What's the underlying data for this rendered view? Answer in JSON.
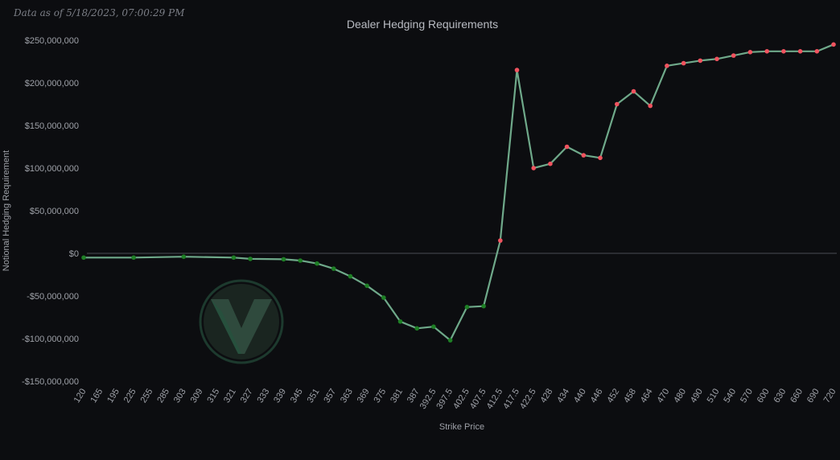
{
  "header": {
    "timestamp": "Data as of 5/18/2023, 07:00:29 PM",
    "title": "Dealer Hedging Requirements"
  },
  "logo": {
    "name": "brand-logo",
    "color": "#2c4a3f"
  },
  "chart_data": {
    "type": "line",
    "title": "Dealer Hedging Requirements",
    "xlabel": "Strike Price",
    "ylabel": "Notional Hedging Requirement",
    "ylim": [
      -150000000,
      250000000
    ],
    "grid": false,
    "zero_line": true,
    "colors": {
      "line": "#6fa98a",
      "negative_marker": "#1e7f25",
      "positive_marker": "#f0535f",
      "background": "#0c0d10",
      "text": "#9ea1a8"
    },
    "y_ticks": [
      {
        "value": 250000000,
        "label": "$250,000,000"
      },
      {
        "value": 200000000,
        "label": "$200,000,000"
      },
      {
        "value": 150000000,
        "label": "$150,000,000"
      },
      {
        "value": 100000000,
        "label": "$100,000,000"
      },
      {
        "value": 50000000,
        "label": "$50,000,000"
      },
      {
        "value": 0,
        "label": "$0"
      },
      {
        "value": -50000000,
        "label": "-$50,000,000"
      },
      {
        "value": -100000000,
        "label": "-$100,000,000"
      },
      {
        "value": -150000000,
        "label": "-$150,000,000"
      }
    ],
    "x_tick_labels": [
      "120",
      "165",
      "195",
      "225",
      "255",
      "285",
      "303",
      "309",
      "315",
      "321",
      "327",
      "333",
      "339",
      "345",
      "351",
      "357",
      "363",
      "369",
      "375",
      "381",
      "387",
      "392.5",
      "397.5",
      "402.5",
      "407.5",
      "412.5",
      "417.5",
      "422.5",
      "428",
      "434",
      "440",
      "446",
      "452",
      "458",
      "464",
      "470",
      "480",
      "490",
      "510",
      "540",
      "570",
      "600",
      "630",
      "660",
      "690",
      "720"
    ],
    "anchors": [
      {
        "x": "120",
        "y": -5000000
      },
      {
        "x": "225",
        "y": -5000000
      },
      {
        "x": "303",
        "y": -4000000
      },
      {
        "x": "321",
        "y": -5000000
      },
      {
        "x": "327",
        "y": -6500000
      },
      {
        "x": "339",
        "y": -7000000
      },
      {
        "x": "345",
        "y": -8500000
      },
      {
        "x": "351",
        "y": -12000000
      },
      {
        "x": "357",
        "y": -18000000
      },
      {
        "x": "363",
        "y": -27000000
      },
      {
        "x": "369",
        "y": -38000000
      },
      {
        "x": "375",
        "y": -52000000
      },
      {
        "x": "381",
        "y": -80000000
      },
      {
        "x": "387",
        "y": -88000000
      },
      {
        "x": "392.5",
        "y": -86000000
      },
      {
        "x": "397.5",
        "y": -102000000
      },
      {
        "x": "402.5",
        "y": -63000000
      },
      {
        "x": "407.5",
        "y": -62000000
      },
      {
        "x": "412.5",
        "y": 15000000
      },
      {
        "x": "417.5",
        "y": 215000000
      },
      {
        "x": "422.5",
        "y": 100000000
      },
      {
        "x": "428",
        "y": 105000000
      },
      {
        "x": "434",
        "y": 125000000
      },
      {
        "x": "440",
        "y": 115000000
      },
      {
        "x": "446",
        "y": 112000000
      },
      {
        "x": "452",
        "y": 175000000
      },
      {
        "x": "458",
        "y": 190000000
      },
      {
        "x": "464",
        "y": 173000000
      },
      {
        "x": "470",
        "y": 220000000
      },
      {
        "x": "480",
        "y": 223000000
      },
      {
        "x": "490",
        "y": 226000000
      },
      {
        "x": "510",
        "y": 228000000
      },
      {
        "x": "540",
        "y": 232000000
      },
      {
        "x": "570",
        "y": 236000000
      },
      {
        "x": "600",
        "y": 237000000
      },
      {
        "x": "630",
        "y": 237000000
      },
      {
        "x": "660",
        "y": 237000000
      },
      {
        "x": "690",
        "y": 237000000
      },
      {
        "x": "720",
        "y": 245000000
      }
    ]
  }
}
